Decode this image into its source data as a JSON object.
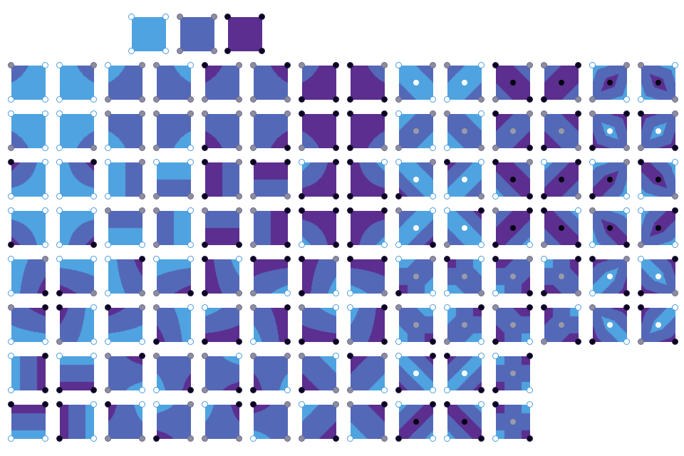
{
  "colors": {
    "level_0": "#4fa3e0",
    "level_1": "#5468b8",
    "level_2": "#5b2e8f"
  },
  "legend": [
    0,
    1,
    2
  ],
  "rows": [
    [
      [
        1,
        0,
        0,
        0
      ],
      [
        0,
        1,
        0,
        0
      ],
      [
        0,
        1,
        1,
        1
      ],
      [
        1,
        0,
        1,
        1
      ],
      [
        2,
        1,
        1,
        1
      ],
      [
        1,
        2,
        1,
        1
      ],
      [
        1,
        2,
        2,
        2
      ],
      [
        2,
        1,
        2,
        2
      ],
      [
        0,
        1,
        1,
        0,
        0
      ],
      [
        1,
        0,
        0,
        1,
        0
      ],
      [
        2,
        1,
        1,
        2,
        2
      ],
      [
        1,
        2,
        2,
        1,
        2
      ],
      [
        0,
        1,
        1,
        0,
        2
      ],
      [
        1,
        0,
        0,
        1,
        2
      ]
    ],
    [
      [
        0,
        0,
        1,
        0
      ],
      [
        0,
        0,
        0,
        1
      ],
      [
        1,
        1,
        0,
        1
      ],
      [
        1,
        1,
        1,
        0
      ],
      [
        1,
        1,
        2,
        1
      ],
      [
        1,
        1,
        1,
        2
      ],
      [
        2,
        2,
        1,
        2
      ],
      [
        2,
        2,
        2,
        1
      ],
      [
        0,
        1,
        1,
        0,
        1
      ],
      [
        1,
        0,
        0,
        1,
        1
      ],
      [
        2,
        1,
        1,
        2,
        1
      ],
      [
        1,
        2,
        2,
        1,
        1
      ],
      [
        1,
        2,
        2,
        1,
        0
      ],
      [
        2,
        1,
        1,
        2,
        0
      ]
    ],
    [
      [
        2,
        0,
        0,
        0
      ],
      [
        0,
        2,
        0,
        0
      ],
      [
        0,
        1,
        0,
        1
      ],
      [
        0,
        0,
        1,
        1
      ],
      [
        2,
        1,
        2,
        1
      ],
      [
        2,
        2,
        1,
        1
      ],
      [
        0,
        2,
        2,
        2
      ],
      [
        2,
        0,
        2,
        2
      ],
      [
        0,
        1,
        2,
        0,
        0
      ],
      [
        2,
        0,
        0,
        1,
        0
      ],
      [
        2,
        1,
        0,
        2,
        2
      ],
      [
        0,
        2,
        2,
        1,
        2
      ],
      [
        0,
        1,
        2,
        0,
        2
      ],
      [
        2,
        0,
        0,
        1,
        2
      ]
    ],
    [
      [
        0,
        0,
        2,
        0
      ],
      [
        0,
        0,
        0,
        2
      ],
      [
        1,
        1,
        0,
        0
      ],
      [
        1,
        0,
        1,
        0
      ],
      [
        1,
        1,
        2,
        2
      ],
      [
        1,
        2,
        1,
        2
      ],
      [
        2,
        2,
        0,
        2
      ],
      [
        2,
        2,
        2,
        0
      ],
      [
        1,
        0,
        0,
        2,
        0
      ],
      [
        0,
        2,
        1,
        0,
        0
      ],
      [
        1,
        2,
        2,
        0,
        2
      ],
      [
        2,
        0,
        1,
        2,
        2
      ],
      [
        1,
        0,
        0,
        2,
        2
      ],
      [
        0,
        2,
        1,
        0,
        2
      ]
    ],
    [
      [
        0,
        1,
        0,
        2
      ],
      [
        0,
        0,
        2,
        1
      ],
      [
        0,
        2,
        0,
        1
      ],
      [
        0,
        0,
        1,
        2
      ],
      [
        2,
        0,
        2,
        1
      ],
      [
        2,
        2,
        1,
        0
      ],
      [
        2,
        1,
        2,
        0
      ],
      [
        2,
        2,
        0,
        1
      ],
      [
        0,
        1,
        2,
        0,
        1
      ],
      [
        2,
        0,
        0,
        1,
        1
      ],
      [
        2,
        1,
        0,
        2,
        1
      ],
      [
        0,
        2,
        2,
        1,
        1
      ],
      [
        2,
        1,
        0,
        2,
        0
      ],
      [
        0,
        2,
        2,
        1,
        0
      ]
    ],
    [
      [
        1,
        2,
        0,
        0
      ],
      [
        2,
        0,
        1,
        0
      ],
      [
        2,
        1,
        0,
        0
      ],
      [
        1,
        0,
        2,
        0
      ],
      [
        0,
        1,
        2,
        2
      ],
      [
        1,
        2,
        0,
        2
      ],
      [
        1,
        0,
        2,
        2
      ],
      [
        0,
        2,
        1,
        2
      ],
      [
        1,
        0,
        0,
        2,
        1
      ],
      [
        0,
        2,
        1,
        0,
        1
      ],
      [
        1,
        2,
        2,
        0,
        1
      ],
      [
        2,
        0,
        1,
        2,
        1
      ],
      [
        1,
        2,
        2,
        0,
        0
      ],
      [
        2,
        0,
        1,
        2,
        0
      ]
    ],
    [
      [
        0,
        2,
        0,
        2
      ],
      [
        0,
        0,
        2,
        2
      ],
      [
        1,
        2,
        1,
        0
      ],
      [
        1,
        1,
        0,
        2
      ],
      [
        1,
        0,
        1,
        2
      ],
      [
        1,
        1,
        2,
        0
      ],
      [
        1,
        0,
        2,
        1
      ],
      [
        2,
        1,
        1,
        0
      ],
      [
        0,
        2,
        2,
        0,
        0
      ],
      [
        2,
        0,
        0,
        2,
        0
      ],
      [
        0,
        2,
        2,
        0,
        1
      ]
    ],
    [
      [
        2,
        2,
        0,
        0
      ],
      [
        2,
        0,
        2,
        0
      ],
      [
        2,
        0,
        1,
        1
      ],
      [
        0,
        1,
        2,
        1
      ],
      [
        0,
        2,
        1,
        1
      ],
      [
        2,
        1,
        0,
        1
      ],
      [
        0,
        1,
        1,
        2
      ],
      [
        1,
        2,
        0,
        1
      ],
      [
        0,
        2,
        2,
        0,
        2
      ],
      [
        2,
        0,
        0,
        2,
        2
      ],
      [
        2,
        0,
        0,
        2,
        1
      ]
    ]
  ]
}
